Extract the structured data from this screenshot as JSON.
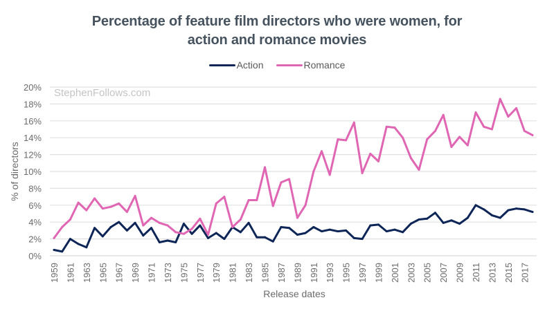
{
  "chart_data": {
    "type": "line",
    "title_lines": [
      "Percentage of feature film directors who were women, for",
      "action and romance movies"
    ],
    "xlabel": "Release dates",
    "ylabel": "% of directors",
    "watermark": "StephenFollows.com",
    "ylim": [
      0,
      20
    ],
    "y_ticks": [
      0,
      2,
      4,
      6,
      8,
      10,
      12,
      14,
      16,
      18,
      20
    ],
    "y_tick_labels": [
      "0%",
      "2%",
      "4%",
      "6%",
      "8%",
      "10%",
      "12%",
      "14%",
      "16%",
      "18%",
      "20%"
    ],
    "grid": true,
    "legend_position": "top-center",
    "x": [
      1959,
      1960,
      1961,
      1962,
      1963,
      1964,
      1965,
      1966,
      1967,
      1968,
      1969,
      1970,
      1971,
      1972,
      1973,
      1974,
      1975,
      1976,
      1977,
      1978,
      1979,
      1980,
      1981,
      1982,
      1983,
      1984,
      1985,
      1986,
      1987,
      1988,
      1989,
      1990,
      1991,
      1992,
      1993,
      1994,
      1995,
      1996,
      1997,
      1998,
      1999,
      2000,
      2001,
      2002,
      2003,
      2004,
      2005,
      2006,
      2007,
      2008,
      2009,
      2010,
      2011,
      2012,
      2013,
      2014,
      2015,
      2016,
      2017,
      2018
    ],
    "x_tick_labels": [
      "1959",
      "1961",
      "1963",
      "1965",
      "1967",
      "1969",
      "1971",
      "1973",
      "1975",
      "1977",
      "1979",
      "1981",
      "1983",
      "1985",
      "1987",
      "1989",
      "1991",
      "1993",
      "1995",
      "1997",
      "1999",
      "2001",
      "2003",
      "2005",
      "2007",
      "2009",
      "2011",
      "2013",
      "2015",
      "2017"
    ],
    "series": [
      {
        "name": "Action",
        "color": "#0d2557",
        "values": [
          0.7,
          0.5,
          2.0,
          1.4,
          1.0,
          3.3,
          2.3,
          3.4,
          4.0,
          3.0,
          3.9,
          2.4,
          3.3,
          1.6,
          1.8,
          1.6,
          3.8,
          2.6,
          3.6,
          2.1,
          2.7,
          2.0,
          3.4,
          2.8,
          3.9,
          2.2,
          2.2,
          1.7,
          3.4,
          3.3,
          2.5,
          2.7,
          3.4,
          2.9,
          3.1,
          2.9,
          3.0,
          2.1,
          2.0,
          3.6,
          3.7,
          2.9,
          3.1,
          2.8,
          3.8,
          4.3,
          4.4,
          5.1,
          3.9,
          4.2,
          3.8,
          4.5,
          6.0,
          5.5,
          4.8,
          4.5,
          5.4,
          5.6,
          5.5,
          5.2
        ]
      },
      {
        "name": "Romance",
        "color": "#e066b3",
        "values": [
          2.1,
          3.4,
          4.3,
          6.3,
          5.4,
          6.8,
          5.6,
          5.8,
          6.2,
          5.2,
          7.1,
          3.6,
          4.5,
          3.9,
          3.6,
          2.8,
          2.6,
          3.2,
          4.4,
          2.5,
          6.2,
          7.0,
          3.4,
          4.3,
          6.6,
          6.6,
          10.5,
          5.9,
          8.7,
          9.1,
          4.5,
          6.0,
          10.0,
          12.4,
          9.6,
          13.8,
          13.7,
          15.8,
          9.8,
          12.1,
          11.2,
          15.3,
          15.2,
          14.0,
          11.6,
          10.2,
          13.8,
          14.8,
          16.7,
          12.9,
          14.1,
          13.1,
          17.0,
          15.3,
          15.0,
          18.6,
          16.5,
          17.5,
          14.8,
          14.3
        ]
      }
    ]
  }
}
